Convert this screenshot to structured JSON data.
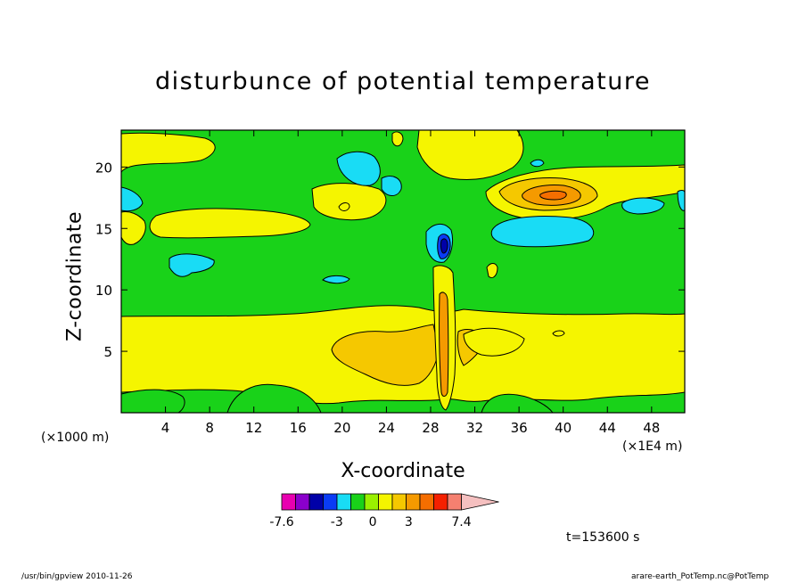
{
  "chart_data": {
    "type": "heatmap",
    "title": "disturbunce of potential temperature",
    "xlabel": "X-coordinate",
    "ylabel": "Z-coordinate",
    "x_unit_left": "(×1000 m)",
    "x_unit_right": "(×1E4 m)",
    "xlim": [
      0,
      51
    ],
    "ylim": [
      0,
      23
    ],
    "x_ticks": [
      4,
      8,
      12,
      16,
      20,
      24,
      28,
      32,
      36,
      40,
      44,
      48
    ],
    "y_ticks": [
      5,
      10,
      15,
      20
    ],
    "colorbar": {
      "colors": [
        "#e800b0",
        "#8a00cc",
        "#0000a8",
        "#0a3cf5",
        "#19dcf5",
        "#19d219",
        "#9af000",
        "#f5f500",
        "#f5c800",
        "#f59a00",
        "#f56e00",
        "#f52000",
        "#f58070",
        "#f5c0c0"
      ],
      "tick_labels": [
        "-7.6",
        "-3",
        "0",
        "3",
        "7.4"
      ],
      "tick_values": [
        -7.6,
        -3,
        0,
        3,
        7.4
      ]
    },
    "annotation_time": "t=153600 s"
  },
  "footer": {
    "left": "/usr/bin/gpview  2010-11-26",
    "right": "arare-earth_PotTemp.nc@PotTemp"
  }
}
